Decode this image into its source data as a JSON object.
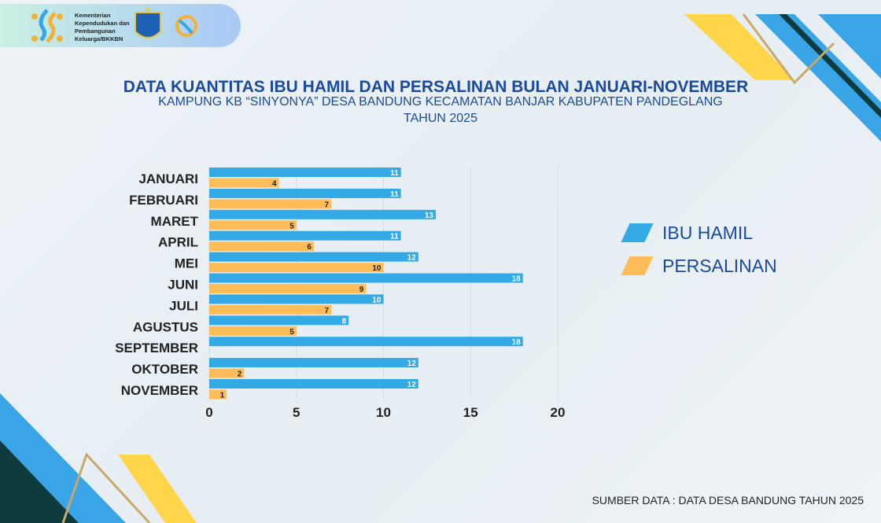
{
  "header": {
    "logo_text": "Kementerian Kependudukan dan Pembangunan Keluarga/BKKBN",
    "badge_text": "BALAI PENYULUH KB KECAMATAN BANJAR"
  },
  "title": "DATA KUANTITAS IBU HAMIL DAN PERSALINAN BULAN JANUARI-NOVEMBER",
  "subtitle": "KAMPUNG KB  “SINYONYA” DESA BANDUNG KECAMATAN BANJAR KABUPATEN PANDEGLANG",
  "subtitle2": "TAHUN 2025",
  "source": "SUMBER DATA : DATA DESA BANDUNG TAHUN 2025",
  "chart_data": {
    "type": "bar",
    "orientation": "horizontal",
    "categories": [
      "JANUARI",
      "FEBRUARI",
      "MARET",
      "APRIL",
      "MEI",
      "JUNI",
      "JULI",
      "AGUSTUS",
      "SEPTEMBER",
      "OKTOBER",
      "NOVEMBER"
    ],
    "series": [
      {
        "name": "IBU HAMIL",
        "color": "#33a9e6",
        "values": [
          11,
          11,
          13,
          11,
          12,
          18,
          10,
          8,
          18,
          12,
          12
        ]
      },
      {
        "name": "PERSALINAN",
        "color": "#ffbd59",
        "values": [
          4,
          7,
          5,
          6,
          10,
          9,
          7,
          5,
          null,
          2,
          1
        ]
      }
    ],
    "xlim": [
      0,
      20
    ],
    "xticks": [
      0,
      5,
      10,
      15,
      20
    ],
    "grid": true,
    "legend": "right"
  }
}
